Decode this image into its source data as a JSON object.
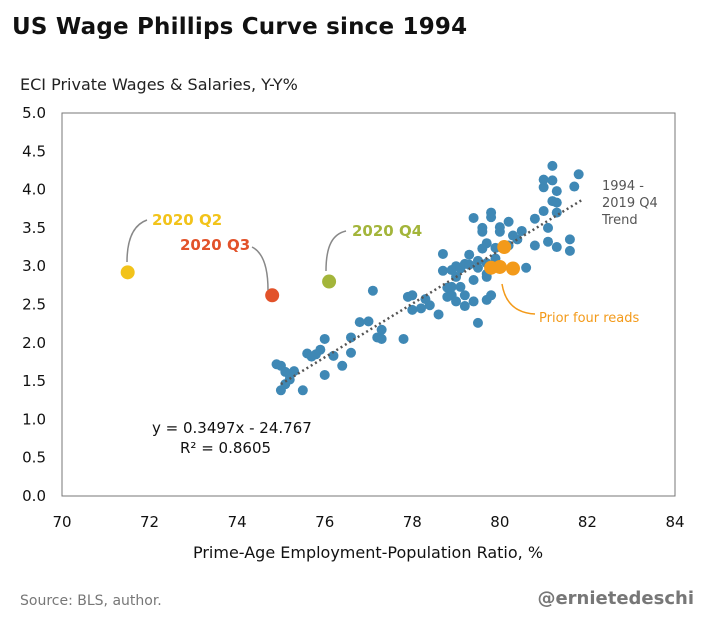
{
  "colors": {
    "scatter": "#3f88b5",
    "recent": "#f39a1a",
    "q2": "#f2c31a",
    "q3": "#e2522a",
    "q4": "#a3b53a",
    "trend": "#555555"
  },
  "chart_data": {
    "type": "scatter",
    "title": "US Wage Phillips Curve since 1994",
    "ylabel": "ECI Private Wages & Salaries, Y-Y%",
    "xlabel": "Prime-Age Employment-Population Ratio, %",
    "xlim": [
      70,
      84
    ],
    "ylim": [
      0.0,
      5.0
    ],
    "xticks": [
      "70",
      "72",
      "74",
      "76",
      "78",
      "80",
      "82",
      "84"
    ],
    "yticks": [
      "0.0",
      "0.5",
      "1.0",
      "1.5",
      "2.0",
      "2.5",
      "3.0",
      "3.5",
      "4.0",
      "4.5",
      "5.0"
    ],
    "trend": {
      "label_lines": [
        "1994 -",
        "2019 Q4",
        "Trend"
      ],
      "slope": 0.3497,
      "intercept": -24.767,
      "x_range": [
        75.0,
        81.9
      ],
      "equation": "y = 0.3497x - 24.767",
      "r2": "R² = 0.8605"
    },
    "historical": [
      [
        74.9,
        1.72
      ],
      [
        75.0,
        1.7
      ],
      [
        75.1,
        1.62
      ],
      [
        75.2,
        1.58
      ],
      [
        75.3,
        1.63
      ],
      [
        75.2,
        1.52
      ],
      [
        75.1,
        1.46
      ],
      [
        75.0,
        1.38
      ],
      [
        75.5,
        1.38
      ],
      [
        75.6,
        1.86
      ],
      [
        75.8,
        1.85
      ],
      [
        75.9,
        1.91
      ],
      [
        76.0,
        2.05
      ],
      [
        75.7,
        1.82
      ],
      [
        76.2,
        1.83
      ],
      [
        76.0,
        1.58
      ],
      [
        76.4,
        1.7
      ],
      [
        76.6,
        1.87
      ],
      [
        76.6,
        2.07
      ],
      [
        76.8,
        2.27
      ],
      [
        77.0,
        2.28
      ],
      [
        77.1,
        2.68
      ],
      [
        77.3,
        2.17
      ],
      [
        77.2,
        2.07
      ],
      [
        77.3,
        2.05
      ],
      [
        77.8,
        2.05
      ],
      [
        77.9,
        2.6
      ],
      [
        78.0,
        2.62
      ],
      [
        78.0,
        2.43
      ],
      [
        78.2,
        2.45
      ],
      [
        78.4,
        2.49
      ],
      [
        78.3,
        2.57
      ],
      [
        78.6,
        2.37
      ],
      [
        78.7,
        2.94
      ],
      [
        78.7,
        3.16
      ],
      [
        78.8,
        2.6
      ],
      [
        78.9,
        2.62
      ],
      [
        78.9,
        2.73
      ],
      [
        78.9,
        2.95
      ],
      [
        79.0,
        2.54
      ],
      [
        79.0,
        2.86
      ],
      [
        79.0,
        3.0
      ],
      [
        79.1,
        2.97
      ],
      [
        79.1,
        2.73
      ],
      [
        79.2,
        2.48
      ],
      [
        79.2,
        2.62
      ],
      [
        79.2,
        3.03
      ],
      [
        79.3,
        3.15
      ],
      [
        79.4,
        3.63
      ],
      [
        79.4,
        2.82
      ],
      [
        79.4,
        2.54
      ],
      [
        79.5,
        2.26
      ],
      [
        79.5,
        2.98
      ],
      [
        79.5,
        3.07
      ],
      [
        79.6,
        3.23
      ],
      [
        79.6,
        3.5
      ],
      [
        79.7,
        3.04
      ],
      [
        79.7,
        3.3
      ],
      [
        79.7,
        2.9
      ],
      [
        79.7,
        2.86
      ],
      [
        79.7,
        2.56
      ],
      [
        79.8,
        3.64
      ],
      [
        79.8,
        3.7
      ],
      [
        79.8,
        2.62
      ],
      [
        79.9,
        3.1
      ],
      [
        79.9,
        3.24
      ],
      [
        80.0,
        3.45
      ],
      [
        80.0,
        3.51
      ],
      [
        80.2,
        3.27
      ],
      [
        80.2,
        3.58
      ],
      [
        80.3,
        3.4
      ],
      [
        80.4,
        3.35
      ],
      [
        80.5,
        3.46
      ],
      [
        80.8,
        3.27
      ],
      [
        80.8,
        3.62
      ],
      [
        81.0,
        3.72
      ],
      [
        81.0,
        4.03
      ],
      [
        81.0,
        4.13
      ],
      [
        81.1,
        3.32
      ],
      [
        81.2,
        4.12
      ],
      [
        81.2,
        3.85
      ],
      [
        81.2,
        4.31
      ],
      [
        81.3,
        3.83
      ],
      [
        81.3,
        3.98
      ],
      [
        81.3,
        3.7
      ],
      [
        81.3,
        3.25
      ],
      [
        81.6,
        3.35
      ],
      [
        81.6,
        3.2
      ],
      [
        81.7,
        4.04
      ],
      [
        81.8,
        4.2
      ],
      [
        81.1,
        3.5
      ],
      [
        80.6,
        2.98
      ],
      [
        79.3,
        3.02
      ],
      [
        78.8,
        2.72
      ],
      [
        79.6,
        3.45
      ]
    ],
    "prior_four_reads": [
      [
        79.8,
        2.98
      ],
      [
        80.0,
        2.99
      ],
      [
        80.1,
        3.25
      ],
      [
        80.3,
        2.97
      ]
    ],
    "prior_four_label": "Prior four reads",
    "highlights": [
      {
        "label": "2020 Q2",
        "x": 71.5,
        "y": 2.92,
        "color_key": "q2"
      },
      {
        "label": "2020 Q3",
        "x": 74.8,
        "y": 2.62,
        "color_key": "q3"
      },
      {
        "label": "2020 Q4",
        "x": 76.1,
        "y": 2.8,
        "color_key": "q4"
      }
    ]
  },
  "footer": {
    "source": "Source: BLS, author.",
    "handle": "@ernietedeschi"
  }
}
